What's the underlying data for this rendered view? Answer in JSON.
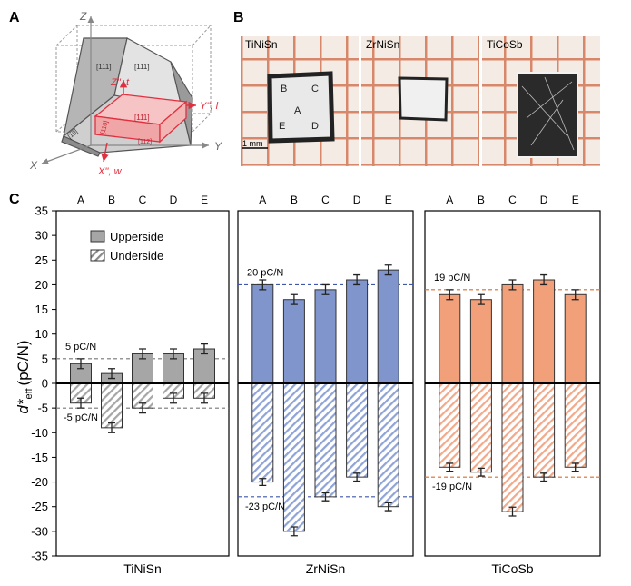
{
  "panel_labels": {
    "a": "A",
    "b": "B",
    "c": "C"
  },
  "panel_a": {
    "axes": {
      "z": "Z",
      "x": "X",
      "y": "Y"
    },
    "faces": {
      "top_left": "[111]",
      "top_right": "[111]",
      "cut": "[111]",
      "side": "[1̅0̅]",
      "edge": "[110]",
      "bottom": "[112]"
    },
    "sample_axes": {
      "z": "Z'', t",
      "y": "Y'', l",
      "x": "X'', w"
    }
  },
  "panel_b": {
    "samples": [
      {
        "name": "TiNiSn",
        "letters": [
          "A",
          "B",
          "C",
          "D",
          "E"
        ]
      },
      {
        "name": "ZrNiSn"
      },
      {
        "name": "TiCoSb"
      }
    ],
    "scale_label": "1 mm"
  },
  "chart_data": {
    "type": "bar",
    "ylabel_main": "d*",
    "ylabel_sub": "eff",
    "ylabel_unit": "(pC/N)",
    "ylim": [
      -35,
      35
    ],
    "yticks": [
      -35,
      -30,
      -25,
      -20,
      -15,
      -10,
      -5,
      0,
      5,
      10,
      15,
      20,
      25,
      30,
      35
    ],
    "categories": [
      "A",
      "B",
      "C",
      "D",
      "E"
    ],
    "legend": {
      "upperside": "Upperside",
      "underside": "Underside"
    },
    "colors": {
      "TiNiSn": {
        "fill": "#a6a6a6",
        "ref": "#777777"
      },
      "ZrNiSn": {
        "fill": "#7f95cc",
        "ref": "#3e57a8"
      },
      "TiCoSb": {
        "fill": "#f2a07a",
        "ref": "#e06a2a"
      }
    },
    "panels": [
      {
        "name": "TiNiSn",
        "upperside": [
          4,
          2,
          6,
          6,
          7
        ],
        "upperside_err": [
          1,
          1,
          1,
          1,
          1
        ],
        "underside": [
          -4,
          -9,
          -5,
          -3,
          -3
        ],
        "underside_err": [
          1,
          1,
          1,
          1,
          1
        ],
        "ref_pos": 5,
        "ref_neg": -5,
        "ref_pos_label": "5 pC/N",
        "ref_neg_label": "-5 pC/N"
      },
      {
        "name": "ZrNiSn",
        "upperside": [
          20,
          17,
          19,
          21,
          23
        ],
        "upperside_err": [
          1,
          1,
          1,
          1,
          1
        ],
        "underside": [
          -20,
          -30,
          -23,
          -19,
          -25
        ],
        "underside_err": [
          0.7,
          0.9,
          0.8,
          0.8,
          0.8
        ],
        "ref_pos": 20,
        "ref_neg": -23,
        "ref_pos_label": "20 pC/N",
        "ref_neg_label": "-23 pC/N"
      },
      {
        "name": "TiCoSb",
        "upperside": [
          18,
          17,
          20,
          21,
          18
        ],
        "upperside_err": [
          1,
          1,
          1,
          1,
          1
        ],
        "underside": [
          -17,
          -18,
          -26,
          -19,
          -17
        ],
        "underside_err": [
          0.8,
          0.8,
          0.9,
          0.8,
          0.8
        ],
        "ref_pos": 19,
        "ref_neg": -19,
        "ref_pos_label": "19 pC/N",
        "ref_neg_label": "-19 pC/N"
      }
    ]
  }
}
